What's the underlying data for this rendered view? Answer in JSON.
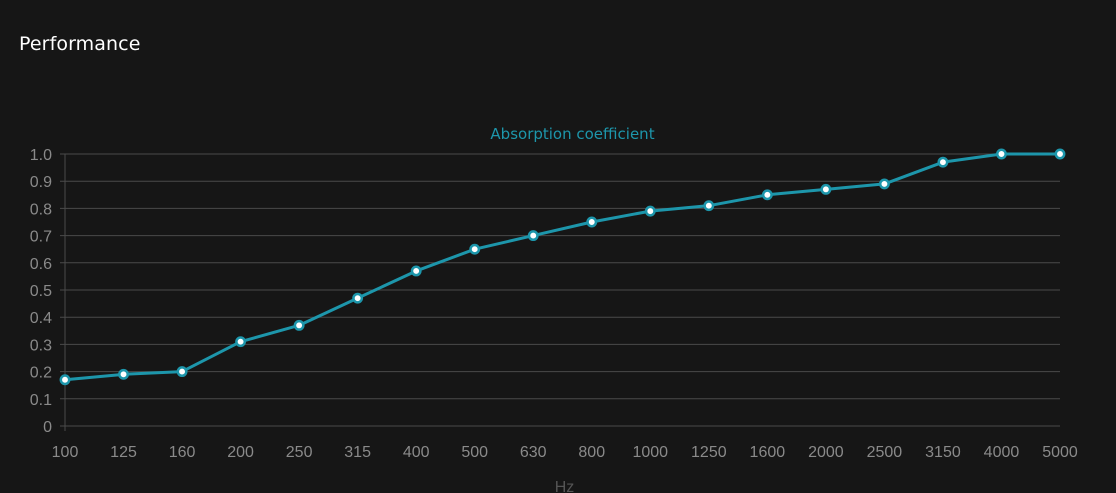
{
  "page": {
    "title": "Performance"
  },
  "colors": {
    "background": "#161616",
    "title": "#ffffff",
    "series": "#1d96ab",
    "grid": "#4a4a4a",
    "axis_text": "#8a8a8a",
    "point_fill": "#ffffff"
  },
  "chart_data": {
    "type": "line",
    "title": "Absorption coefficient",
    "xlabel": "Hz",
    "ylabel": "",
    "categories": [
      "100",
      "125",
      "160",
      "200",
      "250",
      "315",
      "400",
      "500",
      "630",
      "800",
      "1000",
      "1250",
      "1600",
      "2000",
      "2500",
      "3150",
      "4000",
      "5000"
    ],
    "series": [
      {
        "values": [
          0.17,
          0.19,
          0.2,
          0.31,
          0.37,
          0.47,
          0.57,
          0.65,
          0.7,
          0.75,
          0.79,
          0.81,
          0.85,
          0.87,
          0.89,
          0.97,
          1.0,
          1.0
        ]
      }
    ],
    "ylim": [
      0,
      1.0
    ],
    "yticks": [
      "0",
      "0.1",
      "0.2",
      "0.3",
      "0.4",
      "0.5",
      "0.6",
      "0.7",
      "0.8",
      "0.9",
      "1.0"
    ],
    "grid": true,
    "legend": "none"
  }
}
